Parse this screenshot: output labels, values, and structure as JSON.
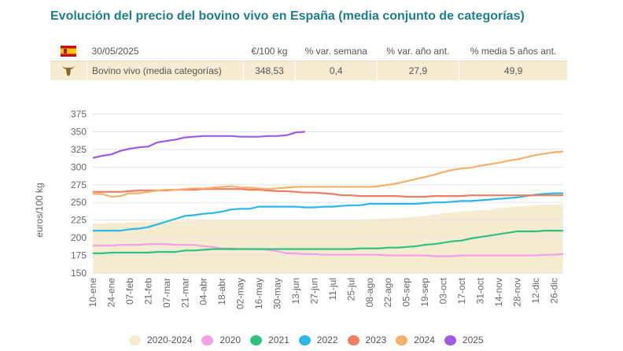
{
  "title": "Evolución del precio del bovino vivo en España (media conjunto de categorías)",
  "summary": {
    "date": "30/05/2025",
    "headers": {
      "unit": "€/100 kg",
      "var_week": "% var. semana",
      "var_year": "% var. año ant.",
      "avg5": "% media 5 años ant."
    },
    "row": {
      "name": "Bovino vivo (media categorías)",
      "price": "348,53",
      "var_week": "0,4",
      "var_year": "27,9",
      "avg5": "49,9"
    },
    "flag_icon": "spain-flag-icon",
    "row_icon": "bull-head-icon"
  },
  "chart_data": {
    "type": "line",
    "ylabel": "euros/100 kg",
    "ylim": [
      150,
      375
    ],
    "yticks": [
      150,
      175,
      200,
      225,
      250,
      275,
      300,
      325,
      350,
      375
    ],
    "x_labels": [
      "10-ene",
      "24-ene",
      "07-feb",
      "21-feb",
      "07-mar",
      "21-mar",
      "04-abr",
      "18-abr",
      "02-may",
      "16-may",
      "30-may",
      "13-jun",
      "27-jun",
      "11-jul",
      "25-jul",
      "08-ago",
      "22-ago",
      "05-sep",
      "19-sep",
      "03-oct",
      "17-oct",
      "31-oct",
      "14-nov",
      "28-nov",
      "12-dic",
      "26-dic"
    ],
    "grid": true,
    "legend_position": "bottom",
    "band": {
      "name": "2020-2024",
      "color": "#f6ecd2",
      "min": [
        150,
        150,
        150,
        150,
        150,
        150,
        150,
        150,
        150,
        150,
        150,
        150,
        150,
        150,
        150,
        150,
        150,
        150,
        150,
        150,
        150,
        150,
        150,
        150,
        150,
        150,
        150,
        150,
        150,
        150,
        150,
        150,
        150,
        150,
        150,
        150,
        150,
        150,
        150,
        150,
        150,
        150,
        150,
        150,
        150,
        150,
        150,
        150,
        150,
        150,
        150,
        150
      ],
      "max": [
        221,
        220,
        221,
        221,
        222,
        222,
        222,
        223,
        223,
        224,
        224,
        224,
        225,
        225,
        225,
        225,
        225,
        225,
        225,
        225,
        225,
        225,
        225,
        225,
        225,
        225,
        225,
        225,
        225,
        226,
        226,
        227,
        227,
        228,
        229,
        230,
        231,
        233,
        235,
        236,
        237,
        238,
        239,
        240,
        242,
        243,
        244,
        245,
        246,
        247,
        247,
        248
      ]
    },
    "series": [
      {
        "name": "2020",
        "color": "#f2a0e8",
        "values": [
          189,
          189,
          189,
          190,
          190,
          190,
          191,
          191,
          191,
          190,
          190,
          190,
          188,
          187,
          185,
          185,
          184,
          184,
          184,
          183,
          181,
          178,
          178,
          177,
          177,
          176,
          176,
          176,
          176,
          176,
          176,
          176,
          175,
          175,
          175,
          175,
          175,
          174,
          174,
          174,
          175,
          175,
          175,
          175,
          175,
          175,
          175,
          175,
          175,
          176,
          176,
          177
        ]
      },
      {
        "name": "2021",
        "color": "#2ec27e",
        "values": [
          178,
          178,
          179,
          179,
          179,
          179,
          179,
          180,
          180,
          180,
          182,
          182,
          183,
          184,
          184,
          184,
          184,
          184,
          184,
          184,
          184,
          184,
          184,
          184,
          184,
          184,
          184,
          184,
          184,
          185,
          185,
          185,
          186,
          186,
          187,
          188,
          190,
          191,
          193,
          195,
          196,
          199,
          201,
          203,
          205,
          207,
          209,
          209,
          209,
          210,
          210,
          210
        ]
      },
      {
        "name": "2022",
        "color": "#2bb7ea",
        "values": [
          210,
          210,
          210,
          210,
          212,
          213,
          215,
          219,
          223,
          227,
          231,
          232,
          234,
          235,
          237,
          240,
          241,
          241,
          244,
          244,
          244,
          244,
          244,
          243,
          243,
          244,
          244,
          245,
          246,
          246,
          248,
          248,
          248,
          248,
          248,
          248,
          249,
          250,
          250,
          251,
          252,
          252,
          253,
          254,
          255,
          256,
          257,
          259,
          261,
          262,
          263,
          263
        ]
      },
      {
        "name": "2023",
        "color": "#f07e63",
        "values": [
          265,
          265,
          265,
          265,
          266,
          267,
          267,
          267,
          267,
          268,
          268,
          268,
          269,
          269,
          269,
          269,
          269,
          268,
          268,
          267,
          266,
          266,
          265,
          264,
          264,
          263,
          262,
          260,
          260,
          259,
          259,
          259,
          259,
          259,
          258,
          258,
          258,
          259,
          259,
          259,
          259,
          260,
          260,
          260,
          260,
          260,
          260,
          260,
          260,
          260,
          260,
          260
        ]
      },
      {
        "name": "2024",
        "color": "#f6b06a",
        "values": [
          262,
          262,
          258,
          259,
          263,
          263,
          265,
          267,
          268,
          268,
          269,
          270,
          270,
          271,
          272,
          273,
          271,
          271,
          270,
          269,
          270,
          271,
          272,
          272,
          272,
          272,
          272,
          272,
          272,
          272,
          272,
          273,
          275,
          277,
          280,
          283,
          286,
          289,
          293,
          296,
          298,
          299,
          302,
          304,
          306,
          309,
          311,
          314,
          317,
          319,
          321,
          322
        ]
      },
      {
        "name": "2025",
        "color": "#9b5ce6",
        "values": [
          313,
          316,
          318,
          323,
          326,
          328,
          329,
          335,
          337,
          339,
          342,
          343,
          344,
          344,
          344,
          344,
          343,
          343,
          343,
          344,
          344,
          345,
          349,
          350
        ]
      }
    ]
  }
}
